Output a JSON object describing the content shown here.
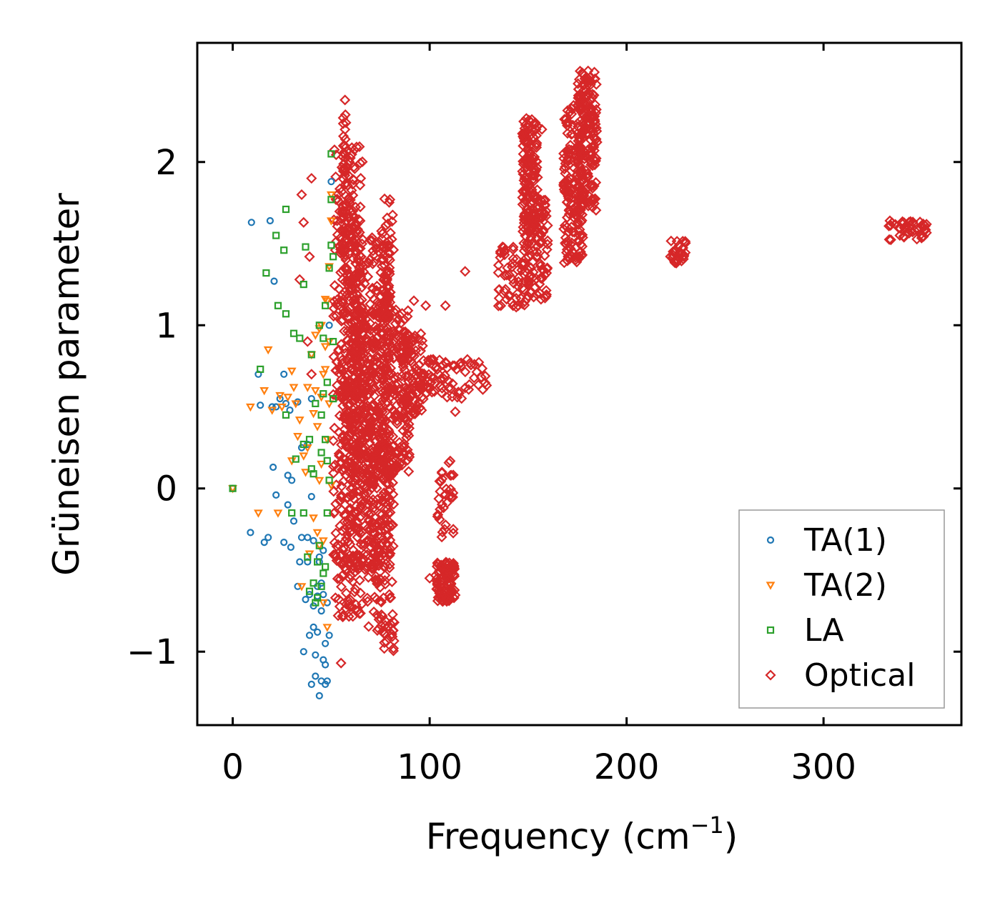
{
  "chart_data": {
    "type": "scatter",
    "title": "",
    "xlabel": "Frequency (cm",
    "xlabel_sup": "−1",
    "xlabel_close": ")",
    "ylabel": "Grüneisen parameter",
    "xlim": [
      -18,
      370
    ],
    "ylim": [
      -1.45,
      2.73
    ],
    "xticks": [
      0,
      100,
      200,
      300
    ],
    "xtick_labels": [
      "0",
      "100",
      "200",
      "300"
    ],
    "yticks": [
      -1,
      0,
      1,
      2
    ],
    "ytick_labels": [
      "−1",
      "0",
      "1",
      "2"
    ],
    "legend_position": "bottom-right",
    "series": [
      {
        "name": "TA(1)",
        "color": "#1f77b4",
        "marker": "circle",
        "points": [
          [
            0,
            0
          ],
          [
            9,
            -0.27
          ],
          [
            9.5,
            1.63
          ],
          [
            13,
            0.7
          ],
          [
            14,
            0.51
          ],
          [
            16,
            -0.33
          ],
          [
            18,
            -0.3
          ],
          [
            19,
            1.64
          ],
          [
            20,
            0.5
          ],
          [
            20.5,
            0.13
          ],
          [
            21,
            1.27
          ],
          [
            22,
            -0.04
          ],
          [
            22,
            0.5
          ],
          [
            24,
            0.55
          ],
          [
            26,
            0.7
          ],
          [
            26,
            -0.33
          ],
          [
            27,
            0.52
          ],
          [
            28,
            0.08
          ],
          [
            28,
            -0.1
          ],
          [
            29,
            0.48
          ],
          [
            29.5,
            -0.36
          ],
          [
            30,
            0.05
          ],
          [
            31,
            -0.2
          ],
          [
            33,
            0.53
          ],
          [
            33,
            -0.6
          ],
          [
            34,
            -0.45
          ],
          [
            35,
            0.25
          ],
          [
            35,
            -0.3
          ],
          [
            36,
            -1.0
          ],
          [
            37,
            -0.68
          ],
          [
            38,
            0.27
          ],
          [
            38,
            -0.3
          ],
          [
            39,
            -0.65
          ],
          [
            39,
            -0.9
          ],
          [
            40,
            -1.2
          ],
          [
            40,
            -0.05
          ],
          [
            40,
            0.55
          ],
          [
            41,
            -0.32
          ],
          [
            41,
            -0.85
          ],
          [
            42,
            -1.02
          ],
          [
            42,
            -1.15
          ],
          [
            43,
            -0.6
          ],
          [
            43,
            -0.88
          ],
          [
            44,
            -1.27
          ],
          [
            44,
            -0.45
          ],
          [
            45,
            -0.75
          ],
          [
            45,
            -1.18
          ],
          [
            46,
            -0.38
          ],
          [
            46,
            -0.65
          ],
          [
            47,
            -0.95
          ],
          [
            47,
            -1.08
          ],
          [
            48,
            -0.7
          ],
          [
            48,
            -1.18
          ],
          [
            49,
            -0.9
          ],
          [
            49,
            1.0
          ],
          [
            50,
            1.88
          ],
          [
            44,
            -0.42
          ],
          [
            46,
            -1.05
          ],
          [
            41,
            -0.72
          ],
          [
            43,
            -0.66
          ],
          [
            47,
            -1.2
          ],
          [
            38,
            -0.45
          ],
          [
            45,
            -0.58
          ]
        ]
      },
      {
        "name": "TA(2)",
        "color": "#ff7f0e",
        "marker": "triangle-down",
        "points": [
          [
            0,
            0
          ],
          [
            9,
            0.5
          ],
          [
            16,
            0.6
          ],
          [
            18,
            0.85
          ],
          [
            20,
            0.48
          ],
          [
            24,
            0.57
          ],
          [
            25,
            0.5
          ],
          [
            28,
            0.56
          ],
          [
            30,
            0.72
          ],
          [
            30,
            0.17
          ],
          [
            31,
            0.62
          ],
          [
            32,
            0.52
          ],
          [
            33,
            0.32
          ],
          [
            34,
            0.42
          ],
          [
            35,
            -0.6
          ],
          [
            36,
            0.2
          ],
          [
            37,
            0.1
          ],
          [
            38,
            0.62
          ],
          [
            39,
            -0.4
          ],
          [
            40,
            0.82
          ],
          [
            41,
            0.46
          ],
          [
            42,
            0.6
          ],
          [
            42,
            0.94
          ],
          [
            43,
            0.38
          ],
          [
            44,
            0.98
          ],
          [
            44,
            -0.35
          ],
          [
            45,
            0.56
          ],
          [
            45,
            0.15
          ],
          [
            45,
            1.0
          ],
          [
            46,
            0.7
          ],
          [
            46,
            -0.7
          ],
          [
            47,
            0.87
          ],
          [
            47,
            1.16
          ],
          [
            48,
            0.3
          ],
          [
            48,
            -0.85
          ],
          [
            49,
            1.36
          ],
          [
            49,
            0.52
          ],
          [
            50,
            1.64
          ],
          [
            50,
            1.8
          ],
          [
            13,
            -0.15
          ],
          [
            23,
            -0.15
          ],
          [
            38,
            0.25
          ],
          [
            44,
            0.05
          ],
          [
            46,
            -0.32
          ],
          [
            47,
            0.73
          ],
          [
            48,
            1.15
          ],
          [
            49,
            0.9
          ],
          [
            50,
            0.02
          ],
          [
            41,
            -0.18
          ],
          [
            43,
            -0.27
          ]
        ]
      },
      {
        "name": "LA",
        "color": "#2ca02c",
        "marker": "square",
        "points": [
          [
            0,
            0
          ],
          [
            14,
            0.73
          ],
          [
            17,
            1.32
          ],
          [
            22,
            1.55
          ],
          [
            23,
            1.12
          ],
          [
            26,
            1.46
          ],
          [
            27,
            1.07
          ],
          [
            27,
            1.71
          ],
          [
            27,
            0.45
          ],
          [
            30,
            -0.15
          ],
          [
            31,
            0.95
          ],
          [
            32,
            0.18
          ],
          [
            34,
            0.92
          ],
          [
            36,
            0.27
          ],
          [
            36,
            -0.15
          ],
          [
            36,
            1.25
          ],
          [
            37,
            1.48
          ],
          [
            38,
            -0.42
          ],
          [
            39,
            0.3
          ],
          [
            39,
            -0.63
          ],
          [
            40,
            0.82
          ],
          [
            40,
            0.12
          ],
          [
            41,
            0.09
          ],
          [
            42,
            -0.7
          ],
          [
            42,
            0.52
          ],
          [
            43,
            -0.45
          ],
          [
            44,
            1.0
          ],
          [
            44,
            -0.35
          ],
          [
            45,
            0.22
          ],
          [
            45,
            0.45
          ],
          [
            46,
            0.58
          ],
          [
            46,
            0.92
          ],
          [
            46,
            -0.52
          ],
          [
            47,
            0.3
          ],
          [
            47,
            1.12
          ],
          [
            48,
            0.65
          ],
          [
            48,
            -0.15
          ],
          [
            49,
            1.35
          ],
          [
            49,
            0.05
          ],
          [
            50,
            1.49
          ],
          [
            50,
            2.05
          ],
          [
            50,
            1.77
          ],
          [
            51,
            1.42
          ],
          [
            51,
            0.9
          ],
          [
            51,
            0.55
          ],
          [
            48,
            0.17
          ],
          [
            47,
            -0.48
          ],
          [
            45,
            -0.6
          ],
          [
            43,
            -0.67
          ],
          [
            41,
            -0.58
          ]
        ]
      },
      {
        "name": "Optical",
        "color": "#d62728",
        "marker": "diamond",
        "points": [],
        "point_clusters": [
          {
            "x_range": [
              51,
              66
            ],
            "y_range": [
              -0.8,
              2.1
            ],
            "count": 360
          },
          {
            "x_range": [
              56,
              58
            ],
            "y_range": [
              1.4,
              2.35
            ],
            "count": 40
          },
          {
            "x_range": [
              55,
              80
            ],
            "y_range": [
              -0.5,
              1.6
            ],
            "count": 500
          },
          {
            "x_range": [
              60,
              90
            ],
            "y_range": [
              0.1,
              1.1
            ],
            "count": 350
          },
          {
            "x_range": [
              68,
              82
            ],
            "y_range": [
              -1.0,
              0.2
            ],
            "count": 150
          },
          {
            "x_range": [
              76,
              82
            ],
            "y_range": [
              0.6,
              1.78
            ],
            "count": 60
          },
          {
            "x_range": [
              86,
              97
            ],
            "y_range": [
              0.45,
              0.95
            ],
            "count": 90
          },
          {
            "x_range": [
              95,
              130
            ],
            "y_range": [
              0.55,
              0.8
            ],
            "count": 70
          },
          {
            "x_range": [
              103,
              113
            ],
            "y_range": [
              -0.7,
              -0.45
            ],
            "count": 90
          },
          {
            "x_range": [
              104,
              112
            ],
            "y_range": [
              -0.3,
              0.17
            ],
            "count": 30
          },
          {
            "x_range": [
              134,
              150
            ],
            "y_range": [
              1.1,
              1.48
            ],
            "count": 60
          },
          {
            "x_range": [
              147,
              155
            ],
            "y_range": [
              1.5,
              2.27
            ],
            "count": 150
          },
          {
            "x_range": [
              150,
              160
            ],
            "y_range": [
              1.15,
              1.8
            ],
            "count": 90
          },
          {
            "x_range": [
              168,
              178
            ],
            "y_range": [
              1.38,
              2.35
            ],
            "count": 160
          },
          {
            "x_range": [
              175,
              185
            ],
            "y_range": [
              1.7,
              2.56
            ],
            "count": 180
          },
          {
            "x_range": [
              222,
              230
            ],
            "y_range": [
              1.38,
              1.52
            ],
            "count": 30
          },
          {
            "x_range": [
              333,
              353
            ],
            "y_range": [
              1.52,
              1.64
            ],
            "count": 45
          }
        ],
        "points_scattered": [
          [
            40,
            1.9
          ],
          [
            35,
            1.8
          ],
          [
            36,
            1.63
          ],
          [
            39,
            1.42
          ],
          [
            34,
            1.28
          ],
          [
            38,
            0.9
          ],
          [
            40,
            0.7
          ],
          [
            55,
            -1.07
          ],
          [
            100,
            -0.55
          ],
          [
            118,
            1.33
          ],
          [
            137,
            1.48
          ],
          [
            157,
            2.2
          ],
          [
            92,
            1.15
          ],
          [
            98,
            1.12
          ],
          [
            108,
            1.12
          ],
          [
            113,
            0.47
          ],
          [
            110,
            -0.05
          ],
          [
            112,
            -0.25
          ],
          [
            57,
            2.38
          ]
        ]
      }
    ]
  }
}
